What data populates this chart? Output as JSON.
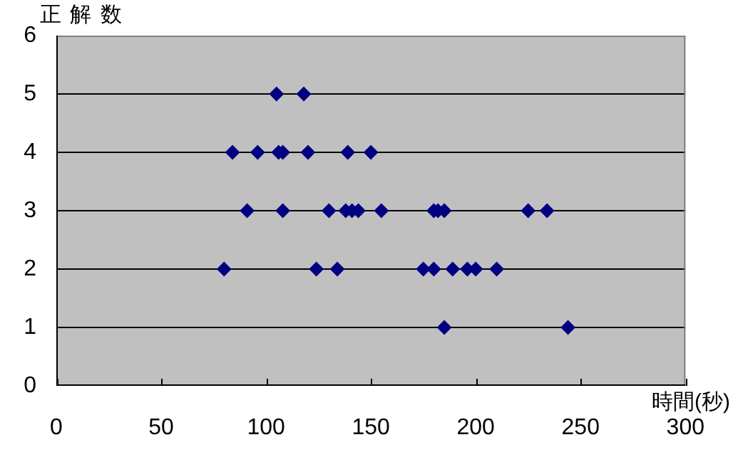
{
  "chart_data": {
    "type": "scatter",
    "ylabel": "正 解 数",
    "xlabel": "時間(秒)",
    "x": [
      105,
      118,
      84,
      96,
      106,
      108,
      120,
      139,
      150,
      91,
      108,
      130,
      138,
      141,
      144,
      155,
      180,
      182,
      185,
      225,
      234,
      80,
      124,
      134,
      175,
      180,
      189,
      196,
      200,
      210,
      185,
      244
    ],
    "series": [
      {
        "color": "#000080",
        "values": [
          5,
          5,
          4,
          4,
          4,
          4,
          4,
          4,
          4,
          3,
          3,
          3,
          3,
          3,
          3,
          3,
          3,
          3,
          3,
          3,
          3,
          2,
          2,
          2,
          2,
          2,
          2,
          2,
          2,
          2,
          1,
          1
        ]
      }
    ],
    "xlim": [
      0,
      300
    ],
    "xticks": [
      0,
      50,
      100,
      150,
      200,
      250,
      300
    ],
    "ylim": [
      0,
      6
    ],
    "yticks": [
      0,
      1,
      2,
      3,
      4,
      5,
      6
    ],
    "grid": "y",
    "marker": "diamond",
    "legend": false
  }
}
